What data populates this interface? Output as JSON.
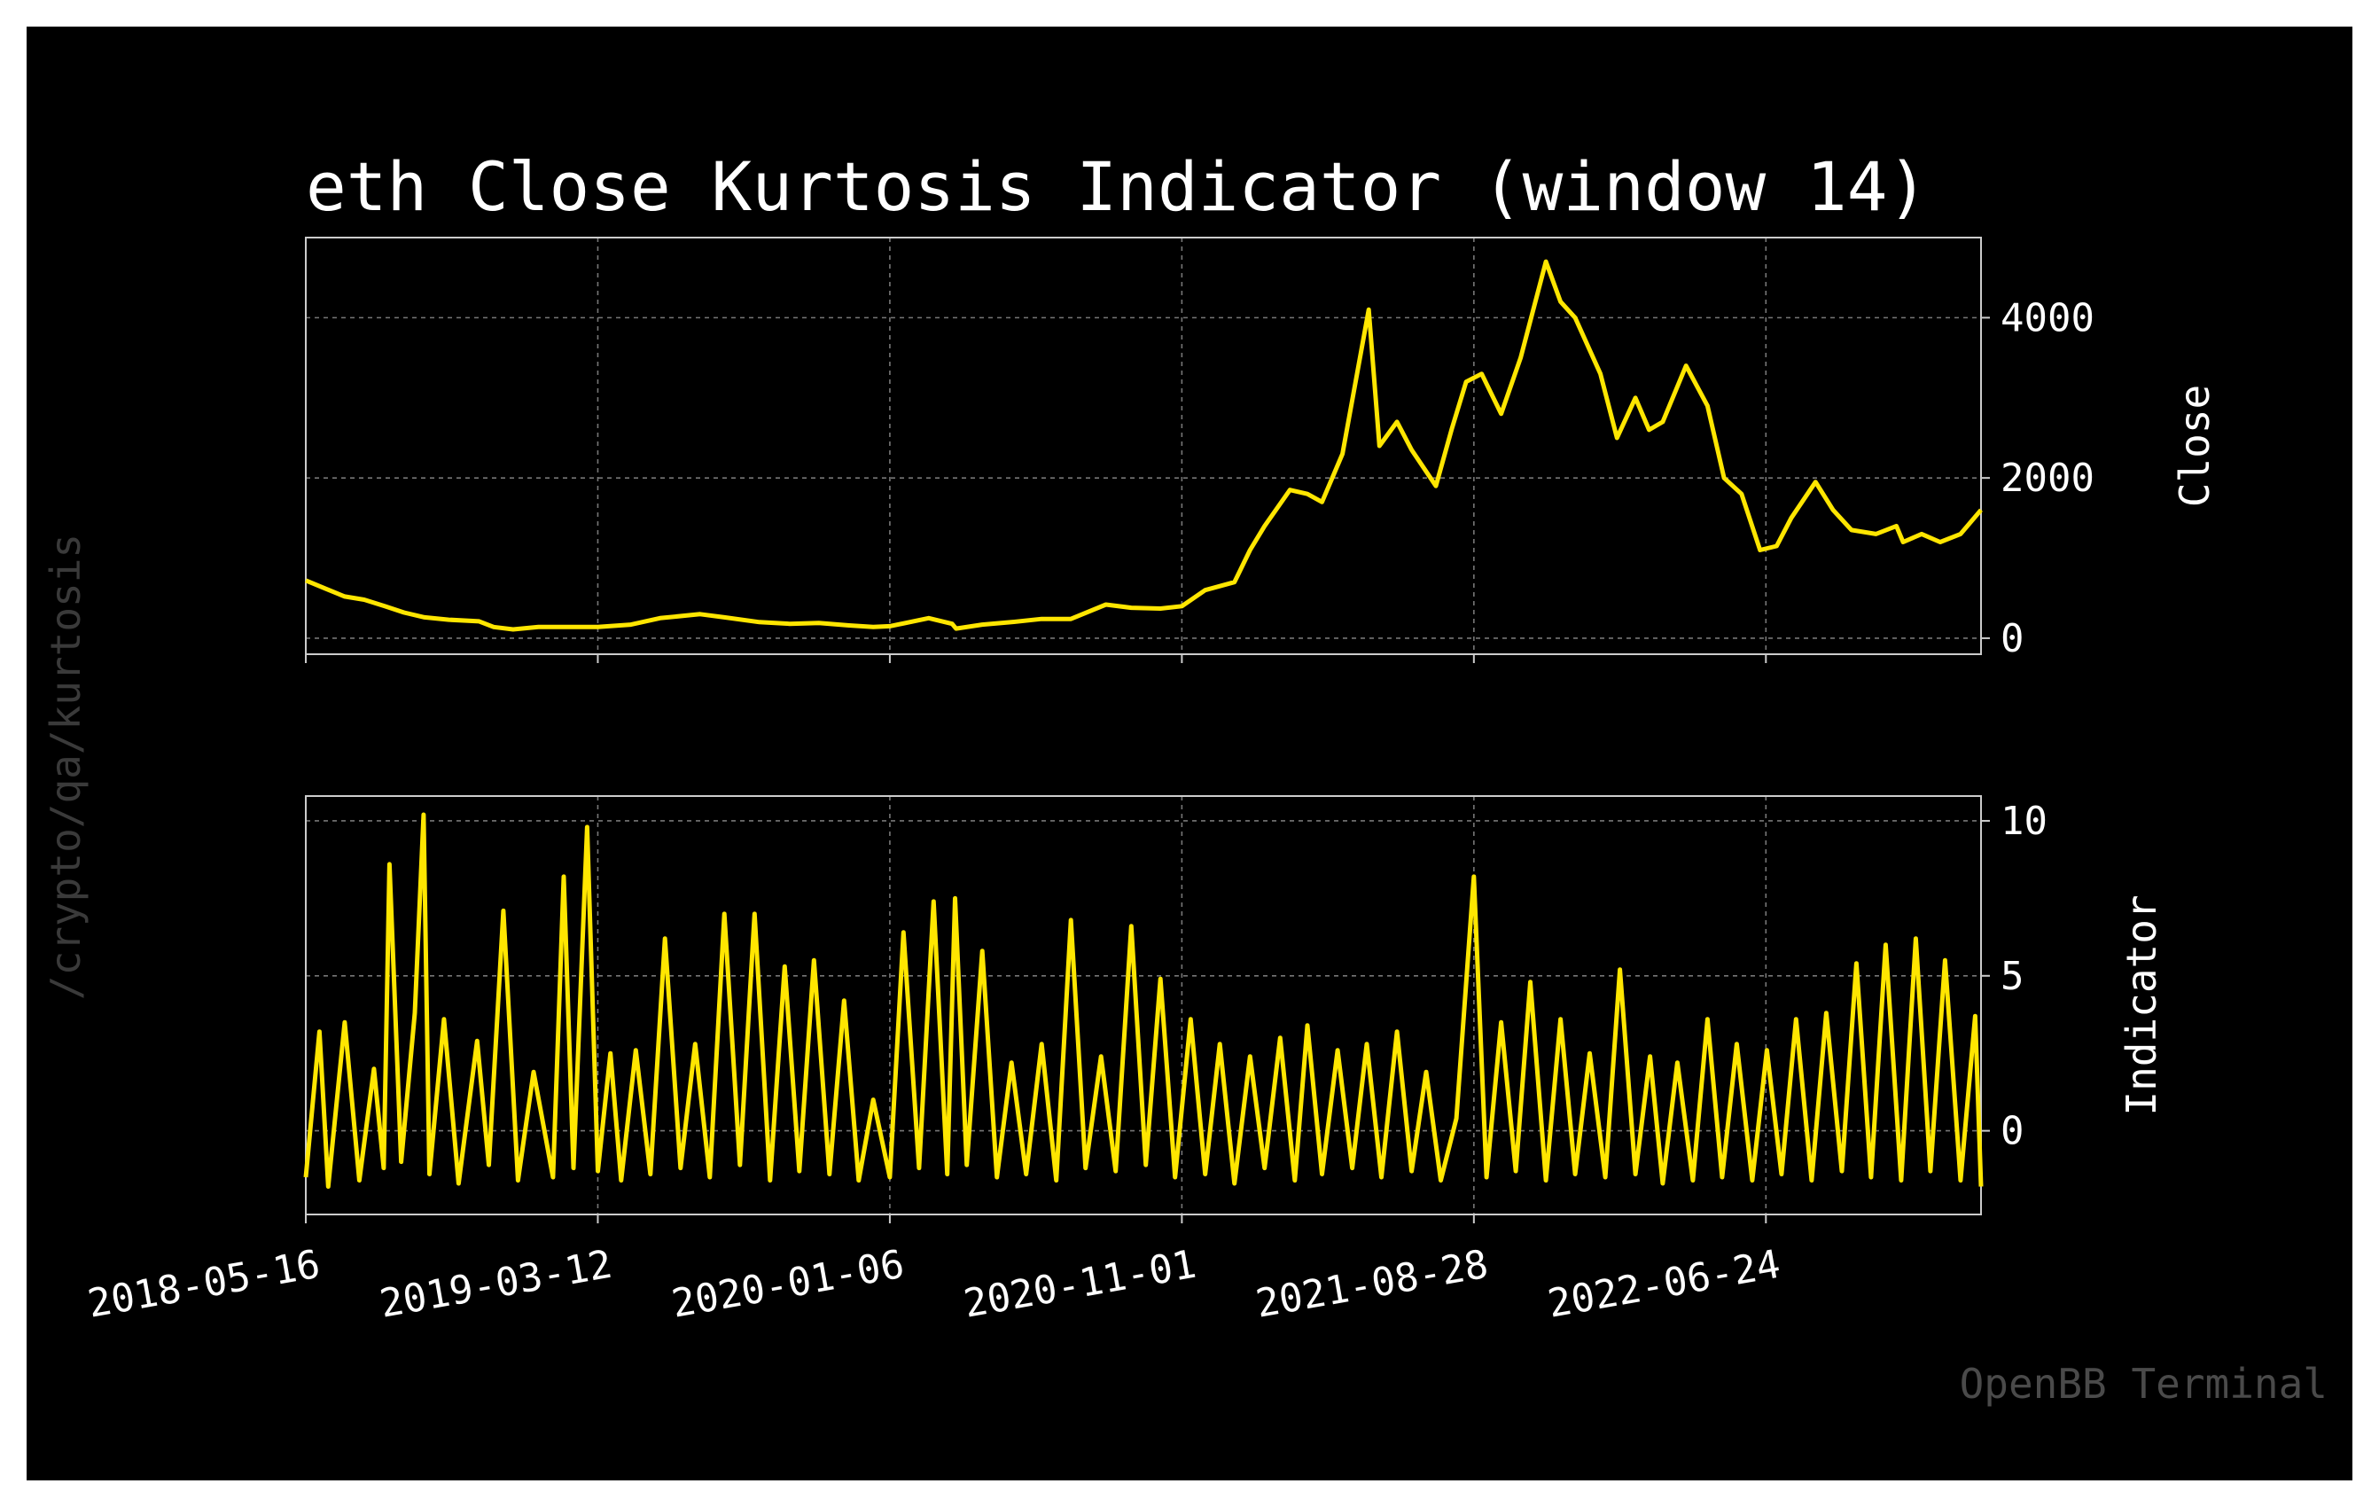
{
  "title": "eth Close Kurtosis Indicator (window 14)",
  "side_label": "/crypto/qa/kurtosis",
  "watermark": "OpenBB Terminal",
  "colors": {
    "background": "#000000",
    "line": "#ffe600",
    "text": "#ffffff",
    "grid": "#777777"
  },
  "chart_data": [
    {
      "type": "line",
      "name": "close-panel",
      "ylabel": "Close",
      "ylim": [
        -200,
        5000
      ],
      "yticks": [
        0,
        2000,
        4000
      ],
      "ytick_labels": [
        "0",
        "2000",
        "4000"
      ],
      "xlim": [
        "2018-05-16",
        "2023-01-31"
      ],
      "grid": true,
      "series": [
        {
          "x": [
            "2018-05-16",
            "2018-06-05",
            "2018-06-25",
            "2018-07-15",
            "2018-08-05",
            "2018-08-25",
            "2018-09-15",
            "2018-10-10",
            "2018-11-10",
            "2018-11-25",
            "2018-12-15",
            "2019-01-10",
            "2019-02-10",
            "2019-03-12",
            "2019-04-15",
            "2019-05-15",
            "2019-06-25",
            "2019-07-20",
            "2019-08-25",
            "2019-09-25",
            "2019-10-25",
            "2019-11-25",
            "2019-12-20",
            "2020-01-06",
            "2020-02-15",
            "2020-03-10",
            "2020-03-14",
            "2020-04-10",
            "2020-05-10",
            "2020-06-10",
            "2020-07-10",
            "2020-08-15",
            "2020-09-10",
            "2020-10-10",
            "2020-11-01",
            "2020-11-25",
            "2020-12-25",
            "2021-01-10",
            "2021-01-25",
            "2021-02-20",
            "2021-03-10",
            "2021-03-25",
            "2021-04-15",
            "2021-05-12",
            "2021-05-23",
            "2021-06-10",
            "2021-06-25",
            "2021-07-20",
            "2021-08-05",
            "2021-08-20",
            "2021-09-05",
            "2021-09-25",
            "2021-10-15",
            "2021-11-10",
            "2021-11-25",
            "2021-12-10",
            "2022-01-05",
            "2022-01-22",
            "2022-02-10",
            "2022-02-24",
            "2022-03-10",
            "2022-04-03",
            "2022-04-25",
            "2022-05-12",
            "2022-05-30",
            "2022-06-18",
            "2022-07-05",
            "2022-07-20",
            "2022-08-14",
            "2022-09-01",
            "2022-09-20",
            "2022-10-15",
            "2022-11-05",
            "2022-11-12",
            "2022-12-01",
            "2022-12-20",
            "2023-01-10",
            "2023-01-31"
          ],
          "y": [
            720,
            620,
            520,
            480,
            400,
            320,
            260,
            230,
            210,
            140,
            110,
            140,
            140,
            140,
            170,
            250,
            300,
            260,
            200,
            180,
            190,
            160,
            140,
            150,
            250,
            180,
            120,
            170,
            200,
            240,
            240,
            420,
            380,
            370,
            400,
            600,
            700,
            1100,
            1400,
            1850,
            1800,
            1700,
            2300,
            4100,
            2400,
            2700,
            2350,
            1900,
            2600,
            3200,
            3300,
            2800,
            3500,
            4700,
            4200,
            4000,
            3300,
            2500,
            3000,
            2600,
            2700,
            3400,
            2900,
            2000,
            1800,
            1100,
            1150,
            1500,
            1950,
            1600,
            1350,
            1300,
            1400,
            1200,
            1300,
            1200,
            1300,
            1600
          ]
        }
      ]
    },
    {
      "type": "line",
      "name": "indicator-panel",
      "ylabel": "Indicator",
      "ylim": [
        -2.7,
        10.8
      ],
      "yticks": [
        0,
        5,
        10
      ],
      "ytick_labels": [
        "0",
        "5",
        "10"
      ],
      "xlim": [
        "2018-05-16",
        "2023-01-31"
      ],
      "xticks": [
        "2018-05-16",
        "2019-03-12",
        "2020-01-06",
        "2020-11-01",
        "2021-08-28",
        "2022-06-24"
      ],
      "xtick_labels": [
        "2018-05-16",
        "2019-03-12",
        "2020-01-06",
        "2020-11-01",
        "2021-08-28",
        "2022-06-24"
      ],
      "grid": true,
      "series": [
        {
          "x": [
            "2018-05-16",
            "2018-05-30",
            "2018-06-08",
            "2018-06-25",
            "2018-07-10",
            "2018-07-25",
            "2018-08-04",
            "2018-08-10",
            "2018-08-22",
            "2018-09-05",
            "2018-09-14",
            "2018-09-20",
            "2018-10-05",
            "2018-10-20",
            "2018-11-08",
            "2018-11-20",
            "2018-12-05",
            "2018-12-20",
            "2019-01-05",
            "2019-01-25",
            "2019-02-05",
            "2019-02-15",
            "2019-03-01",
            "2019-03-12",
            "2019-03-25",
            "2019-04-05",
            "2019-04-20",
            "2019-05-05",
            "2019-05-20",
            "2019-06-05",
            "2019-06-20",
            "2019-07-05",
            "2019-07-20",
            "2019-08-05",
            "2019-08-20",
            "2019-09-05",
            "2019-09-20",
            "2019-10-05",
            "2019-10-20",
            "2019-11-05",
            "2019-11-20",
            "2019-12-05",
            "2019-12-20",
            "2020-01-06",
            "2020-01-20",
            "2020-02-05",
            "2020-02-20",
            "2020-03-05",
            "2020-03-13",
            "2020-03-25",
            "2020-04-10",
            "2020-04-25",
            "2020-05-10",
            "2020-05-25",
            "2020-06-10",
            "2020-06-25",
            "2020-07-10",
            "2020-07-25",
            "2020-08-10",
            "2020-08-25",
            "2020-09-10",
            "2020-09-25",
            "2020-10-10",
            "2020-10-25",
            "2020-11-10",
            "2020-11-25",
            "2020-12-10",
            "2020-12-25",
            "2021-01-10",
            "2021-01-25",
            "2021-02-10",
            "2021-02-25",
            "2021-03-10",
            "2021-03-25",
            "2021-04-10",
            "2021-04-25",
            "2021-05-10",
            "2021-05-25",
            "2021-06-10",
            "2021-06-25",
            "2021-07-10",
            "2021-07-25",
            "2021-08-10",
            "2021-08-28",
            "2021-09-10",
            "2021-09-25",
            "2021-10-10",
            "2021-10-25",
            "2021-11-10",
            "2021-11-25",
            "2021-12-10",
            "2021-12-25",
            "2022-01-10",
            "2022-01-25",
            "2022-02-10",
            "2022-02-25",
            "2022-03-10",
            "2022-03-25",
            "2022-04-10",
            "2022-04-25",
            "2022-05-10",
            "2022-05-25",
            "2022-06-10",
            "2022-06-25",
            "2022-07-10",
            "2022-07-25",
            "2022-08-10",
            "2022-08-25",
            "2022-09-10",
            "2022-09-25",
            "2022-10-10",
            "2022-10-25",
            "2022-11-10",
            "2022-11-25",
            "2022-12-10",
            "2022-12-25",
            "2023-01-10",
            "2023-01-25",
            "2023-01-31"
          ],
          "y": [
            -1.5,
            3.2,
            -1.8,
            3.5,
            -1.6,
            2.0,
            -1.2,
            8.6,
            -1.0,
            3.8,
            10.2,
            -1.4,
            3.6,
            -1.7,
            2.9,
            -1.1,
            7.1,
            -1.6,
            1.9,
            -1.5,
            8.2,
            -1.2,
            9.8,
            -1.3,
            2.5,
            -1.6,
            2.6,
            -1.4,
            6.2,
            -1.2,
            2.8,
            -1.5,
            7.0,
            -1.1,
            7.0,
            -1.6,
            5.3,
            -1.3,
            5.5,
            -1.4,
            4.2,
            -1.6,
            1.0,
            -1.5,
            6.4,
            -1.2,
            7.4,
            -1.4,
            7.5,
            -1.1,
            5.8,
            -1.5,
            2.2,
            -1.4,
            2.8,
            -1.6,
            6.8,
            -1.2,
            2.4,
            -1.3,
            6.6,
            -1.1,
            4.9,
            -1.5,
            3.6,
            -1.4,
            2.8,
            -1.7,
            2.4,
            -1.2,
            3.0,
            -1.6,
            3.4,
            -1.4,
            2.6,
            -1.2,
            2.8,
            -1.5,
            3.2,
            -1.3,
            1.9,
            -1.6,
            0.4,
            8.2,
            -1.5,
            3.5,
            -1.3,
            4.8,
            -1.6,
            3.6,
            -1.4,
            2.5,
            -1.5,
            5.2,
            -1.4,
            2.4,
            -1.7,
            2.2,
            -1.6,
            3.6,
            -1.5,
            2.8,
            -1.6,
            2.6,
            -1.4,
            3.6,
            -1.6,
            3.8,
            -1.3,
            5.4,
            -1.5,
            6.0,
            -1.6,
            6.2,
            -1.3,
            5.5,
            -1.6,
            3.7,
            -1.8
          ]
        }
      ]
    }
  ]
}
